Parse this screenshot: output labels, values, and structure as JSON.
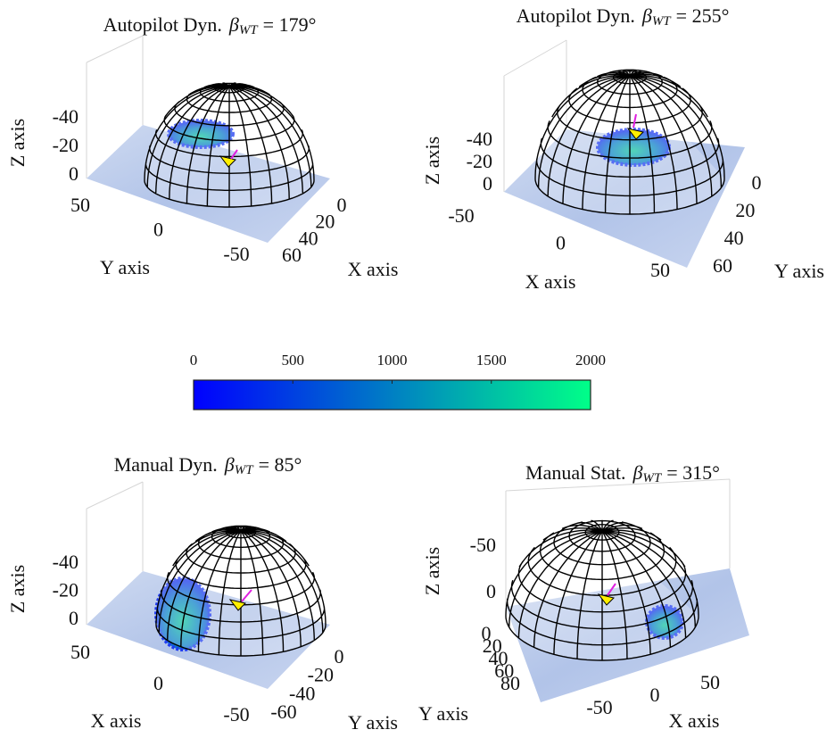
{
  "chart_data": [
    {
      "type": "surface3d",
      "title": [
        "Autopilot Dyn.",
        "β",
        "WT",
        "= 179°"
      ],
      "xlabel": "X axis",
      "ylabel": "Y axis",
      "zlabel": "Z axis",
      "xticks": [
        0,
        20,
        40,
        60
      ],
      "yticks": [
        50,
        0,
        -50
      ],
      "zticks": [
        -40,
        -20,
        0
      ]
    },
    {
      "type": "surface3d",
      "title": [
        "Autopilot Dyn.",
        "β",
        "WT",
        "= 255°"
      ],
      "xlabel": "X axis",
      "ylabel": "Y axis",
      "zlabel": "Z axis",
      "xticks": [
        -50,
        0,
        50
      ],
      "yticks": [
        0,
        20,
        40,
        60
      ],
      "zticks": [
        -40,
        -20,
        0
      ]
    },
    {
      "type": "surface3d",
      "title": [
        "Manual Dyn.",
        "β",
        "WT",
        "= 85°"
      ],
      "xlabel": "X axis",
      "ylabel": "Y axis",
      "zlabel": "Z axis",
      "xticks": [
        50,
        0,
        -50
      ],
      "yticks": [
        0,
        -20,
        -40,
        -60
      ],
      "zticks": [
        -40,
        -20,
        0
      ]
    },
    {
      "type": "surface3d",
      "title": [
        "Manual Stat.",
        "β",
        "WT",
        "= 315°"
      ],
      "xlabel": "X axis",
      "ylabel": "Y axis",
      "zlabel": "Z axis",
      "xticks": [
        -50,
        0,
        50
      ],
      "yticks": [
        0,
        20,
        40,
        60,
        80
      ],
      "zticks": [
        -50,
        0
      ]
    },
    {
      "type": "colorbar",
      "clim": [
        0,
        2000
      ],
      "ticks": [
        0,
        500,
        1000,
        1500,
        2000
      ],
      "colors": [
        "#0000ff",
        "#00ff88"
      ]
    }
  ]
}
